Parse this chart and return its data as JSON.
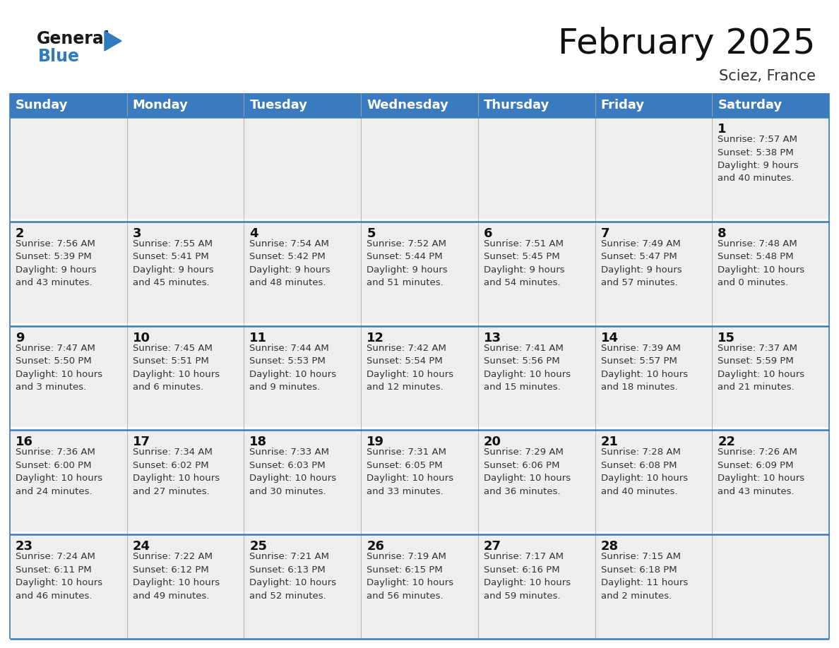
{
  "title": "February 2025",
  "subtitle": "Sciez, France",
  "header_bg": "#3a7abf",
  "header_text_color": "#ffffff",
  "cell_bg": "#eeeeee",
  "cell_bg_white": "#ffffff",
  "border_color": "#3a7abf",
  "sep_color": "#cccccc",
  "day_headers": [
    "Sunday",
    "Monday",
    "Tuesday",
    "Wednesday",
    "Thursday",
    "Friday",
    "Saturday"
  ],
  "title_fontsize": 36,
  "subtitle_fontsize": 15,
  "header_fontsize": 13,
  "day_num_fontsize": 13,
  "cell_fontsize": 9.5,
  "logo_general_color": "#1a1a1a",
  "logo_blue_color": "#2e7bbf",
  "weeks": [
    [
      {
        "day": null,
        "text": ""
      },
      {
        "day": null,
        "text": ""
      },
      {
        "day": null,
        "text": ""
      },
      {
        "day": null,
        "text": ""
      },
      {
        "day": null,
        "text": ""
      },
      {
        "day": null,
        "text": ""
      },
      {
        "day": 1,
        "text": "Sunrise: 7:57 AM\nSunset: 5:38 PM\nDaylight: 9 hours\nand 40 minutes."
      }
    ],
    [
      {
        "day": 2,
        "text": "Sunrise: 7:56 AM\nSunset: 5:39 PM\nDaylight: 9 hours\nand 43 minutes."
      },
      {
        "day": 3,
        "text": "Sunrise: 7:55 AM\nSunset: 5:41 PM\nDaylight: 9 hours\nand 45 minutes."
      },
      {
        "day": 4,
        "text": "Sunrise: 7:54 AM\nSunset: 5:42 PM\nDaylight: 9 hours\nand 48 minutes."
      },
      {
        "day": 5,
        "text": "Sunrise: 7:52 AM\nSunset: 5:44 PM\nDaylight: 9 hours\nand 51 minutes."
      },
      {
        "day": 6,
        "text": "Sunrise: 7:51 AM\nSunset: 5:45 PM\nDaylight: 9 hours\nand 54 minutes."
      },
      {
        "day": 7,
        "text": "Sunrise: 7:49 AM\nSunset: 5:47 PM\nDaylight: 9 hours\nand 57 minutes."
      },
      {
        "day": 8,
        "text": "Sunrise: 7:48 AM\nSunset: 5:48 PM\nDaylight: 10 hours\nand 0 minutes."
      }
    ],
    [
      {
        "day": 9,
        "text": "Sunrise: 7:47 AM\nSunset: 5:50 PM\nDaylight: 10 hours\nand 3 minutes."
      },
      {
        "day": 10,
        "text": "Sunrise: 7:45 AM\nSunset: 5:51 PM\nDaylight: 10 hours\nand 6 minutes."
      },
      {
        "day": 11,
        "text": "Sunrise: 7:44 AM\nSunset: 5:53 PM\nDaylight: 10 hours\nand 9 minutes."
      },
      {
        "day": 12,
        "text": "Sunrise: 7:42 AM\nSunset: 5:54 PM\nDaylight: 10 hours\nand 12 minutes."
      },
      {
        "day": 13,
        "text": "Sunrise: 7:41 AM\nSunset: 5:56 PM\nDaylight: 10 hours\nand 15 minutes."
      },
      {
        "day": 14,
        "text": "Sunrise: 7:39 AM\nSunset: 5:57 PM\nDaylight: 10 hours\nand 18 minutes."
      },
      {
        "day": 15,
        "text": "Sunrise: 7:37 AM\nSunset: 5:59 PM\nDaylight: 10 hours\nand 21 minutes."
      }
    ],
    [
      {
        "day": 16,
        "text": "Sunrise: 7:36 AM\nSunset: 6:00 PM\nDaylight: 10 hours\nand 24 minutes."
      },
      {
        "day": 17,
        "text": "Sunrise: 7:34 AM\nSunset: 6:02 PM\nDaylight: 10 hours\nand 27 minutes."
      },
      {
        "day": 18,
        "text": "Sunrise: 7:33 AM\nSunset: 6:03 PM\nDaylight: 10 hours\nand 30 minutes."
      },
      {
        "day": 19,
        "text": "Sunrise: 7:31 AM\nSunset: 6:05 PM\nDaylight: 10 hours\nand 33 minutes."
      },
      {
        "day": 20,
        "text": "Sunrise: 7:29 AM\nSunset: 6:06 PM\nDaylight: 10 hours\nand 36 minutes."
      },
      {
        "day": 21,
        "text": "Sunrise: 7:28 AM\nSunset: 6:08 PM\nDaylight: 10 hours\nand 40 minutes."
      },
      {
        "day": 22,
        "text": "Sunrise: 7:26 AM\nSunset: 6:09 PM\nDaylight: 10 hours\nand 43 minutes."
      }
    ],
    [
      {
        "day": 23,
        "text": "Sunrise: 7:24 AM\nSunset: 6:11 PM\nDaylight: 10 hours\nand 46 minutes."
      },
      {
        "day": 24,
        "text": "Sunrise: 7:22 AM\nSunset: 6:12 PM\nDaylight: 10 hours\nand 49 minutes."
      },
      {
        "day": 25,
        "text": "Sunrise: 7:21 AM\nSunset: 6:13 PM\nDaylight: 10 hours\nand 52 minutes."
      },
      {
        "day": 26,
        "text": "Sunrise: 7:19 AM\nSunset: 6:15 PM\nDaylight: 10 hours\nand 56 minutes."
      },
      {
        "day": 27,
        "text": "Sunrise: 7:17 AM\nSunset: 6:16 PM\nDaylight: 10 hours\nand 59 minutes."
      },
      {
        "day": 28,
        "text": "Sunrise: 7:15 AM\nSunset: 6:18 PM\nDaylight: 11 hours\nand 2 minutes."
      },
      {
        "day": null,
        "text": ""
      }
    ]
  ]
}
